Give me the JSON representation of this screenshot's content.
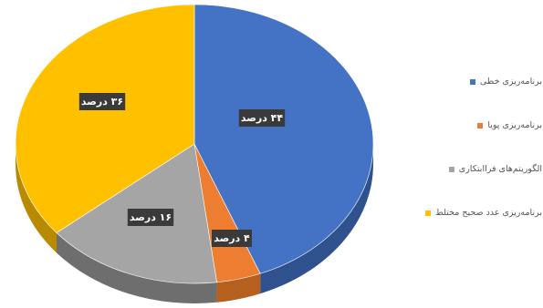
{
  "chart_data": {
    "type": "pie",
    "style": "3d",
    "slices": [
      {
        "label": "برنامه‌ریزی خطی",
        "value": 44,
        "data_label": "۴۴ درصد",
        "color": "#4472C4",
        "side": "#2F528F"
      },
      {
        "label": "برنامه‌ریزی پویا",
        "value": 4,
        "data_label": "۴ درصد",
        "color": "#ED7D31",
        "side": "#B5601F"
      },
      {
        "label": "الگوریتم‌های فراابتکاری",
        "value": 16,
        "data_label": "۱۶ درصد",
        "color": "#A5A5A5",
        "side": "#6E6E6E"
      },
      {
        "label": "برنامه‌ریزی عدد صحیح مختلط",
        "value": 36,
        "data_label": "۳۶ درصد",
        "color": "#FFC000",
        "side": "#B88A00"
      }
    ],
    "legend_position": "right",
    "label_box_color": "#3A3A3A"
  }
}
